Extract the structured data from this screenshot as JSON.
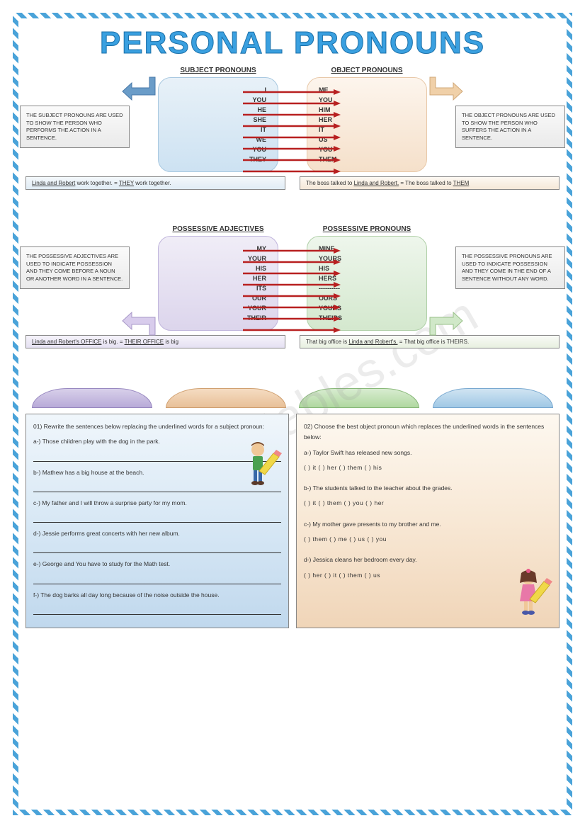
{
  "title": "PERSONAL PRONOUNS",
  "watermark": "ESLprintables.com",
  "sections": {
    "subject": {
      "heading": "SUBJECT PRONOUNS",
      "items": [
        "I",
        "YOU",
        "HE",
        "SHE",
        "IT",
        "WE",
        "YOU",
        "THEY"
      ],
      "info": "THE SUBJECT PRONOUNS ARE USED TO SHOW THE PERSON WHO PERFORMS THE ACTION IN A SENTENCE.",
      "example": "Linda and Robert work together. = THEY work together."
    },
    "object": {
      "heading": "OBJECT PRONOUNS",
      "items": [
        "ME",
        "YOU",
        "HIM",
        "HER",
        "IT",
        "US",
        "YOU",
        "THEM"
      ],
      "info": "THE OBJECT PRONOUNS ARE USED TO SHOW THE PERSON WHO SUFFERS THE ACTION IN A SENTENCE.",
      "example": "The boss talked to Linda and Robert. = The boss talked to THEM"
    },
    "possadj": {
      "heading": "POSSESSIVE ADJECTIVES",
      "items": [
        "MY",
        "YOUR",
        "HIS",
        "HER",
        "ITS",
        "OUR",
        "YOUR",
        "THEIR"
      ],
      "info": "THE POSSESSIVE ADJECTIVES ARE USED TO INDICATE POSSESSION AND THEY COME BEFORE A NOUN OR ANOTHER WORD IN A SENTENCE.",
      "example": "Linda and Robert's OFFICE is big. = THEIR OFFICE is big"
    },
    "posspro": {
      "heading": "POSSESSIVE  PRONOUNS",
      "items": [
        "MINE",
        "YOURS",
        "HIS",
        "HERS",
        "----------",
        "OURS",
        "YOURS",
        "THEIRS"
      ],
      "info": "THE POSSESSIVE PRONOUNS ARE USED TO INDICATE POSSESSION AND THEY COME IN THE END OF A SENTENCE WITHOUT ANY WORD.",
      "example": "That big office is Linda and Robert's. = That big office is THEIRS."
    }
  },
  "exercise1": {
    "prompt": "01) Rewrite the sentences below replacing the underlined words for a subject pronoun:",
    "items": [
      "a-) Those children play with the dog in the park.",
      "b-) Mathew has a big house at the beach.",
      "c-) My father and I will throw a surprise party for my mom.",
      "d-) Jessie performs great concerts with her new album.",
      "e-) George and You have to study for the Math test.",
      "f-) The dog barks all day long because of the noise outside the house."
    ]
  },
  "exercise2": {
    "prompt": "02) Choose the best object pronoun which replaces the underlined words in the sentences below:",
    "items": [
      {
        "q": "a-) Taylor Swift has released new songs.",
        "opts": "(   ) it   (   ) her   (   ) them   (   ) his"
      },
      {
        "q": "b-) The students talked to the teacher about the grades.",
        "opts": "(   ) it   (   ) them   (   ) you   (   ) her"
      },
      {
        "q": "c-) My mother gave presents to my brother and me.",
        "opts": "(   ) them   (   ) me   (   ) us   (   ) you"
      },
      {
        "q": "d-) Jessica cleans her bedroom every day.",
        "opts": "(   ) her   (   ) it   (   ) them   (   ) us"
      }
    ]
  },
  "colors": {
    "arrow_red": "#b82020",
    "big_arrow_blue": "#6a9cc8",
    "big_arrow_orange": "#e0b080",
    "big_arrow_purple": "#b8a8d8",
    "big_arrow_green": "#a8cc98"
  }
}
